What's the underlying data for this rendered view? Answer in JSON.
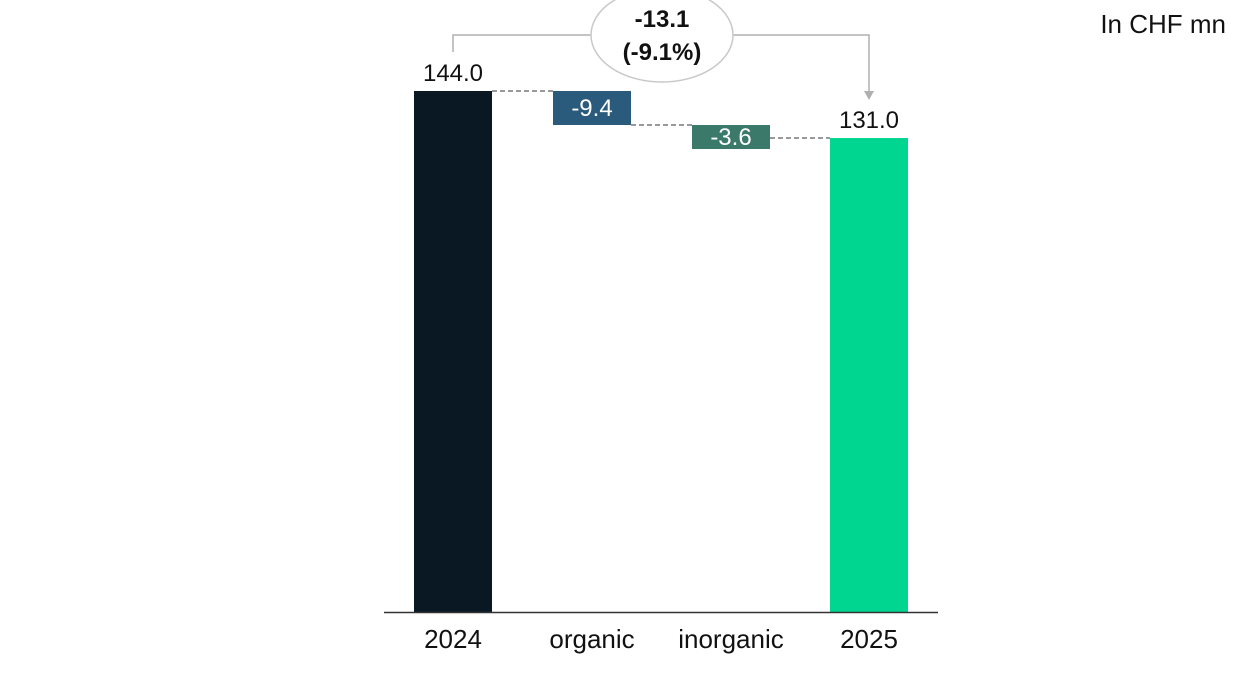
{
  "unit_label": "In CHF mn",
  "chart_data": {
    "type": "bar",
    "subtype": "waterfall",
    "categories": [
      "2024",
      "organic",
      "inorganic",
      "2025"
    ],
    "values": [
      144.0,
      -9.4,
      -3.6,
      131.0
    ],
    "value_labels": [
      "144.0",
      "-9.4",
      "-3.6",
      "131.0"
    ],
    "bar_kinds": [
      "total",
      "delta",
      "delta",
      "total"
    ],
    "colors": [
      "#0a1824",
      "#2a5a7c",
      "#3b7a6a",
      "#00d68f"
    ],
    "ylim": [
      0,
      144.0
    ],
    "grid": false,
    "legend": "none",
    "annotation": {
      "line1": "-13.1",
      "line2": "(-9.1%)"
    }
  }
}
